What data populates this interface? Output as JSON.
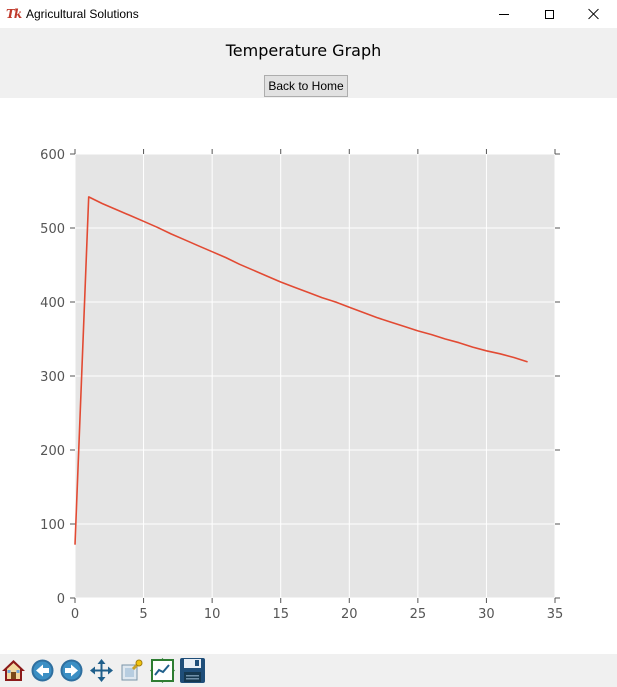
{
  "window": {
    "title": "Agricultural Solutions",
    "controls": [
      "minimize",
      "maximize",
      "close"
    ]
  },
  "header": {
    "title": "Temperature Graph",
    "back_label": "Back to Home"
  },
  "chart_data": {
    "type": "line",
    "title": "",
    "xlabel": "",
    "ylabel": "",
    "xlim": [
      0,
      35
    ],
    "ylim": [
      0,
      600
    ],
    "x_ticks": [
      0,
      5,
      10,
      15,
      20,
      25,
      30,
      35
    ],
    "y_ticks": [
      0,
      100,
      200,
      300,
      400,
      500,
      600
    ],
    "grid": true,
    "colors": {
      "background": "#e5e5e5",
      "line": "#e24a33",
      "grid": "#ffffff"
    },
    "series": [
      {
        "x": [
          0,
          1,
          2,
          3,
          4,
          5,
          6,
          7,
          8,
          9,
          10,
          11,
          12,
          13,
          14,
          15,
          16,
          17,
          18,
          19,
          20,
          21,
          22,
          23,
          24,
          25,
          26,
          27,
          28,
          29,
          30,
          31,
          32,
          33
        ],
        "values": [
          72,
          542,
          533,
          525,
          517,
          509,
          501,
          492,
          484,
          476,
          468,
          460,
          451,
          443,
          435,
          427,
          420,
          413,
          406,
          400,
          393,
          386,
          379,
          373,
          367,
          361,
          356,
          350,
          345,
          339,
          334,
          330,
          325,
          319
        ]
      }
    ]
  },
  "toolbar": {
    "buttons": [
      {
        "name": "home-icon"
      },
      {
        "name": "back-arrow-icon"
      },
      {
        "name": "forward-arrow-icon"
      },
      {
        "name": "pan-icon"
      },
      {
        "name": "zoom-icon"
      },
      {
        "name": "subplots-icon"
      },
      {
        "name": "save-icon"
      }
    ]
  }
}
